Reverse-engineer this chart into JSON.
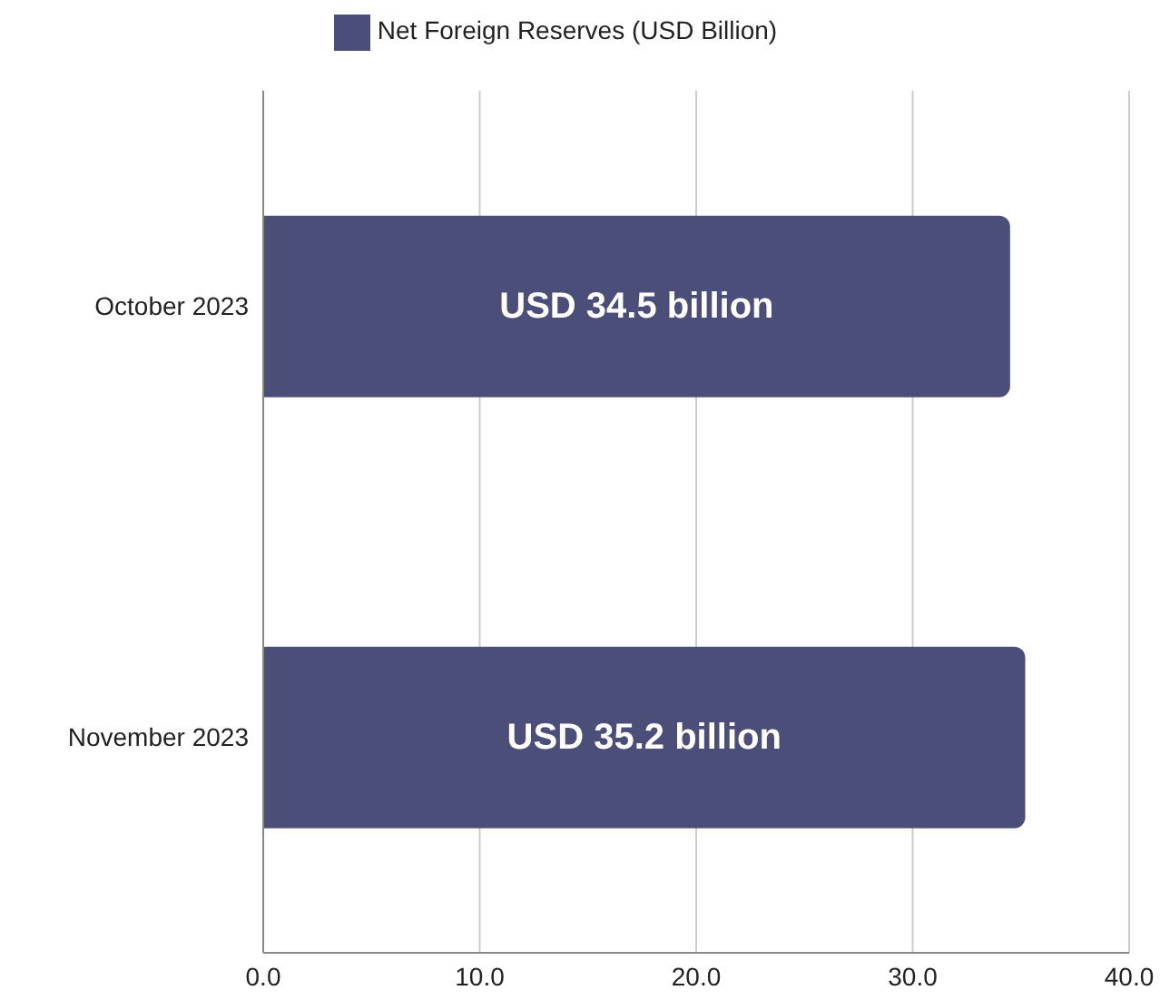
{
  "chart_data": {
    "type": "bar",
    "orientation": "horizontal",
    "categories": [
      "October 2023",
      "November 2023"
    ],
    "series": [
      {
        "name": "Net Foreign Reserves (USD Billion)",
        "color": "#4a4e78",
        "values": [
          34.5,
          35.2
        ],
        "value_labels": [
          "USD 34.5 billion",
          "USD 35.2 billion"
        ]
      }
    ],
    "xlim": [
      0,
      40
    ],
    "xticks": [
      {
        "value": 0,
        "label": "0.0"
      },
      {
        "value": 10,
        "label": "10.0"
      },
      {
        "value": 20,
        "label": "20.0"
      },
      {
        "value": 30,
        "label": "30.0"
      },
      {
        "value": 40,
        "label": "40.0"
      }
    ],
    "grid": "x",
    "legend": "top"
  }
}
